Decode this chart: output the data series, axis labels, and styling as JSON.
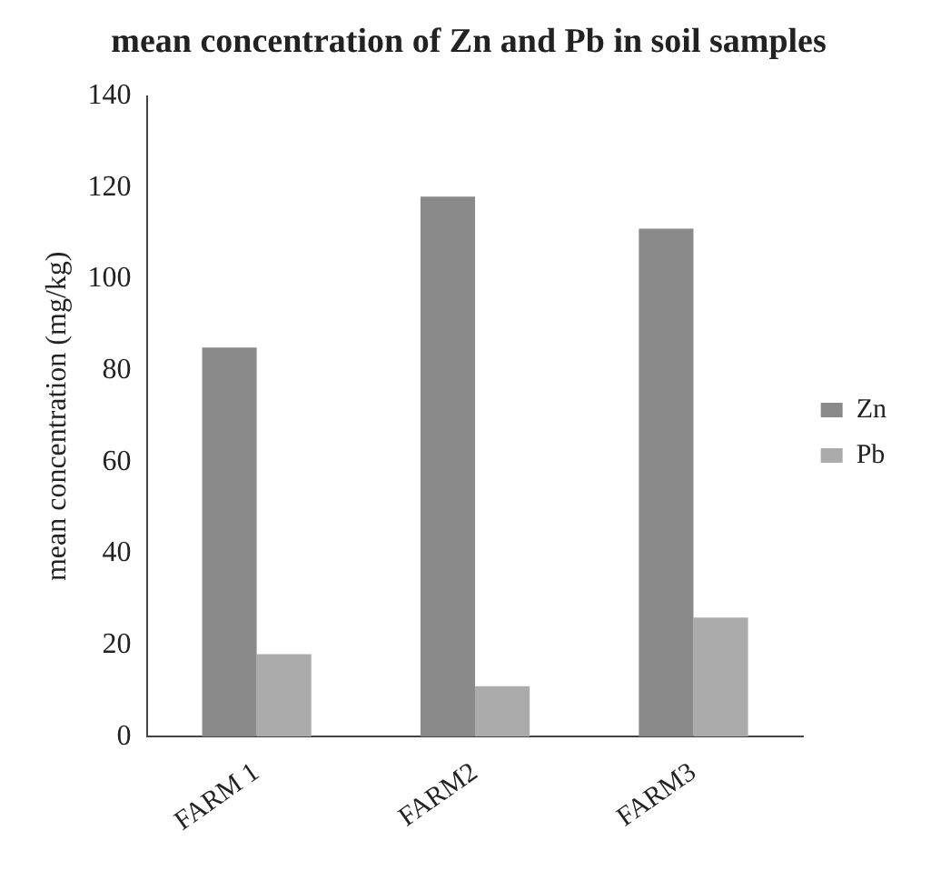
{
  "chart_data": {
    "type": "bar",
    "title": "mean concentration of Zn and Pb in soil samples",
    "ylabel": "mean concentration (mg/kg)",
    "categories": [
      "FARM 1",
      "FARM2",
      "FARM3"
    ],
    "series": [
      {
        "name": "Zn",
        "color": "#8a8a8a",
        "values": [
          85,
          118,
          111
        ]
      },
      {
        "name": "Pb",
        "color": "#ababab",
        "values": [
          18,
          11,
          26
        ]
      }
    ],
    "ylim": [
      0,
      140
    ],
    "yticks": [
      0,
      20,
      40,
      60,
      80,
      100,
      120,
      140
    ],
    "grid": false,
    "legend": "right"
  }
}
